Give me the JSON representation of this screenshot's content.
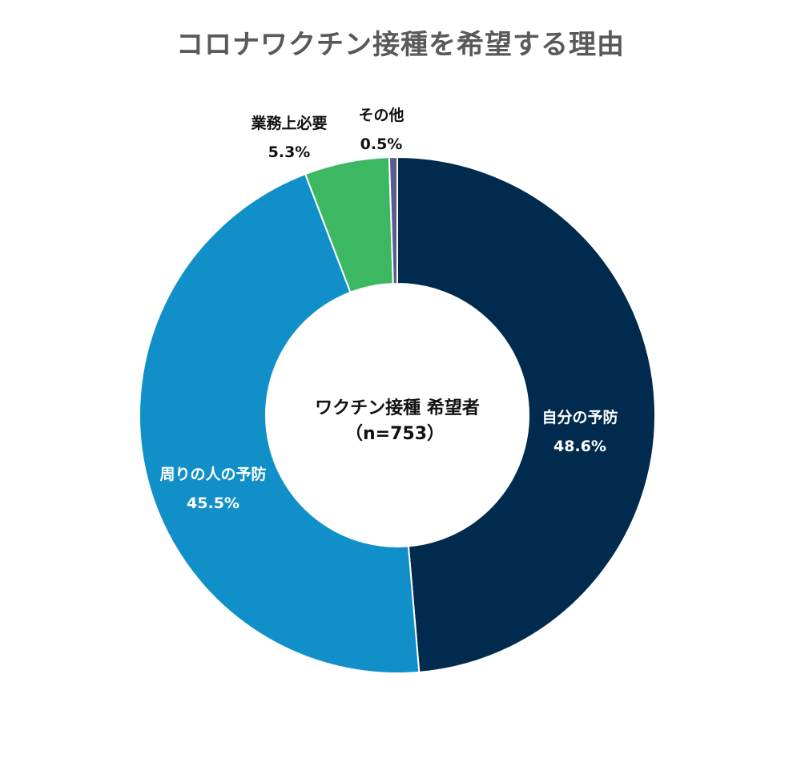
{
  "chart_data": {
    "type": "pie",
    "variant": "donut",
    "title": "コロナワクチン接種を希望する理由",
    "center_label": {
      "line1": "ワクチン接種 希望者",
      "line2": "（n=753）"
    },
    "categories": [
      "自分の予防",
      "周りの人の予防",
      "業務上必要",
      "その他"
    ],
    "values": [
      48.6,
      45.5,
      5.3,
      0.5
    ],
    "value_labels": [
      "48.6%",
      "45.5%",
      "5.3%",
      "0.5%"
    ],
    "colors": [
      "#002b4e",
      "#118fc8",
      "#3db862",
      "#5b5b8f"
    ],
    "label_colors": [
      "#ffffff",
      "#ffffff",
      "#111111",
      "#111111"
    ],
    "label_placement": [
      "inside",
      "inside",
      "outside",
      "outside"
    ],
    "start_angle": "12 o'clock",
    "direction": "clockwise",
    "legend": "none"
  }
}
